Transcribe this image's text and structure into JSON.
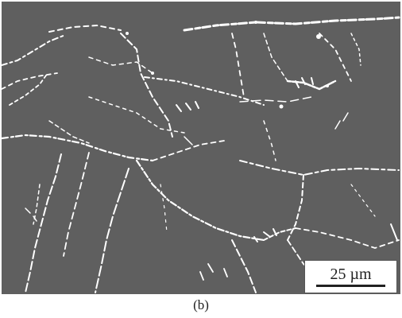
{
  "figure": {
    "background_color": "#5f5f5f",
    "boundary_color": "#ffffff",
    "scale_label": "25 µm",
    "caption": "(b)"
  }
}
